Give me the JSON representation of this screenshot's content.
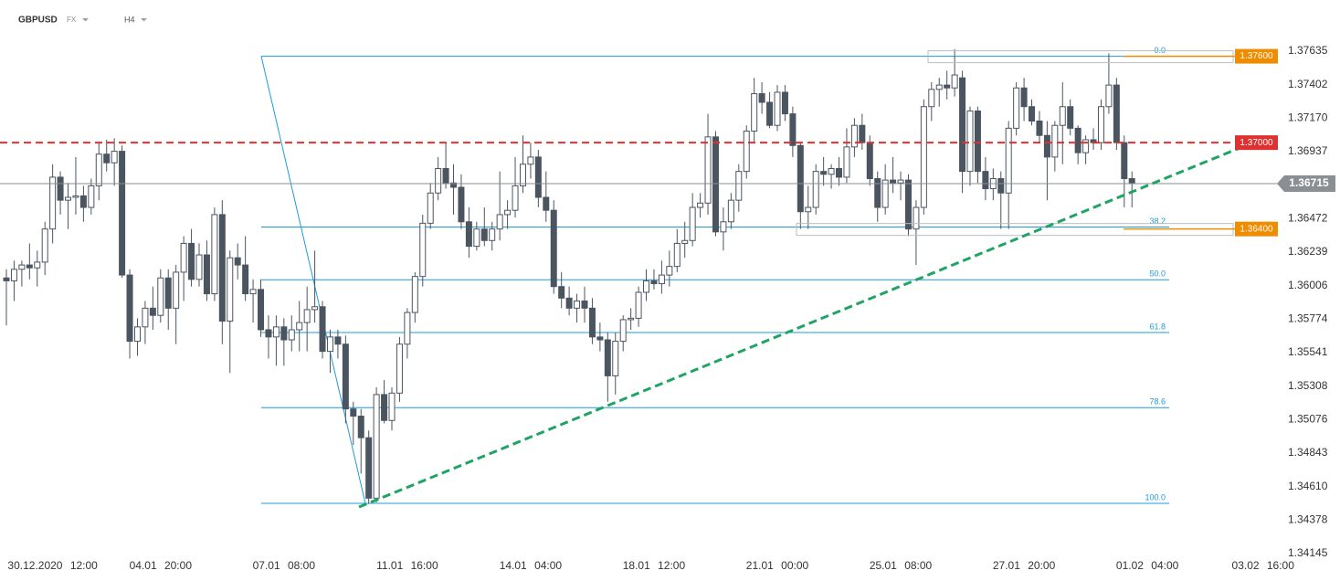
{
  "chart_data": {
    "type": "candlestick",
    "symbol": "GBPUSD",
    "market": "FX",
    "timeframe": "H4",
    "up_color": "#ffffff",
    "down_color": "#4b5560",
    "grid": false,
    "ylim": [
      1.34145,
      1.37737
    ],
    "yticks": [
      1.37635,
      1.37402,
      {
        "value": 1.3717,
        "label": "1.37170"
      },
      1.36937,
      1.36472,
      1.36239,
      1.36006,
      1.35774,
      1.35541,
      1.35308,
      1.35076,
      1.34843,
      {
        "value": 1.3461,
        "label": "1.34610"
      },
      1.34378,
      1.34145
    ],
    "categories": [
      null,
      null,
      null,
      null,
      null,
      null,
      "30.12.2020 12:00",
      null,
      null,
      null,
      null,
      null,
      null,
      null,
      null,
      null,
      null,
      null,
      null,
      null,
      "04.01 20:00",
      null,
      null,
      null,
      null,
      null,
      null,
      null,
      null,
      null,
      null,
      null,
      null,
      null,
      null,
      null,
      "07.01 08:00",
      null,
      null,
      null,
      null,
      null,
      null,
      null,
      null,
      null,
      null,
      null,
      null,
      null,
      null,
      null,
      "11.01 16:00",
      null,
      null,
      null,
      null,
      null,
      null,
      null,
      null,
      null,
      null,
      null,
      null,
      null,
      null,
      null,
      "14.01 04:00",
      null,
      null,
      null,
      null,
      null,
      null,
      null,
      null,
      null,
      null,
      null,
      null,
      null,
      null,
      null,
      "18.01 12:00",
      null,
      null,
      null,
      null,
      null,
      null,
      null,
      null,
      null,
      null,
      null,
      null,
      null,
      null,
      null,
      "21.01 00:00",
      null,
      null,
      null,
      null,
      null,
      null,
      null,
      null,
      null,
      null,
      null,
      null,
      null,
      null,
      null,
      "25.01 08:00",
      null,
      null,
      null,
      null,
      null,
      null,
      null,
      null,
      null,
      null,
      null,
      null,
      null,
      null,
      null,
      "27.01 20:00",
      null,
      null,
      null,
      null,
      null,
      null,
      null,
      null,
      null,
      null,
      null,
      null,
      null,
      null,
      null,
      "01.02 04:00",
      null,
      null,
      null,
      null,
      null,
      null,
      null,
      null,
      null,
      null,
      null,
      null,
      null,
      null,
      "03.02 16:00"
    ],
    "open": [
      1.3606,
      1.3604,
      1.3612,
      1.3615,
      1.3613,
      1.3617,
      1.364,
      1.3676,
      1.366,
      1.3662,
      1.3663,
      1.3655,
      1.367,
      1.3692,
      1.3686,
      1.3694,
      1.3608,
      1.3562,
      1.3572,
      1.3585,
      1.358,
      1.3606,
      1.3585,
      1.361,
      1.363,
      1.3605,
      1.3622,
      1.3595,
      1.365,
      1.3576,
      1.362,
      1.3615,
      1.3595,
      1.3598,
      1.357,
      1.3565,
      1.3572,
      1.3563,
      1.357,
      1.3575,
      1.3584,
      1.3586,
      1.3555,
      1.3565,
      1.356,
      1.3515,
      1.351,
      1.3495,
      1.3453,
      1.3525,
      1.3507,
      1.3526,
      1.356,
      1.3582,
      1.3607,
      1.3644,
      1.3665,
      1.3682,
      1.3672,
      1.3669,
      1.3645,
      1.3628,
      1.364,
      1.3632,
      1.364,
      1.365,
      1.3653,
      1.367,
      1.3685,
      1.369,
      1.3662,
      1.3653,
      1.36,
      1.3592,
      1.3585,
      1.359,
      1.3585,
      1.3565,
      1.3563,
      1.3538,
      1.3562,
      1.3577,
      1.3578,
      1.3596,
      1.3604,
      1.3602,
      1.3608,
      1.3614,
      1.363,
      1.3632,
      1.3655,
      1.3658,
      1.3704,
      1.3638,
      1.3645,
      1.366,
      1.368,
      1.3708,
      1.3734,
      1.3728,
      1.3712,
      1.3735,
      1.372,
      1.3698,
      1.3652,
      1.3655,
      1.368,
      1.3678,
      1.3682,
      1.3676,
      1.3697,
      1.3712,
      1.37,
      1.3675,
      1.3655,
      1.3674,
      1.3672,
      1.3674,
      1.364,
      1.3655,
      1.3725,
      1.3737,
      1.374,
      1.3738,
      1.3745,
      1.368,
      1.3722,
      1.368,
      1.3668,
      1.3675,
      1.3665,
      1.371,
      1.3738,
      1.3725,
      1.3715,
      1.3705,
      1.369,
      1.3712,
      1.3725,
      1.371,
      1.3693,
      1.3702,
      1.37,
      1.3725,
      1.374,
      1.37,
      1.3675,
      null,
      null,
      null,
      null,
      null,
      null,
      null,
      null,
      null,
      null,
      null,
      null,
      null,
      null,
      null,
      null,
      null
    ],
    "high": [
      1.3612,
      1.3618,
      1.3618,
      1.363,
      1.3625,
      1.3645,
      1.3685,
      1.368,
      1.3672,
      1.369,
      1.367,
      1.3675,
      1.37,
      1.3702,
      1.3703,
      1.3698,
      1.3612,
      1.3578,
      1.359,
      1.36,
      1.3612,
      1.3612,
      1.3615,
      1.3635,
      1.364,
      1.363,
      1.3632,
      1.3655,
      1.366,
      1.3625,
      1.363,
      1.3635,
      1.3605,
      1.3605,
      1.358,
      1.358,
      1.3578,
      1.358,
      1.359,
      1.36,
      1.3625,
      1.359,
      1.357,
      1.357,
      1.3566,
      1.352,
      1.3515,
      1.35,
      1.353,
      1.3535,
      1.353,
      1.3565,
      1.3585,
      1.361,
      1.365,
      1.3672,
      1.369,
      1.37,
      1.3685,
      1.3678,
      1.3655,
      1.3645,
      1.3655,
      1.3645,
      1.368,
      1.366,
      1.369,
      1.3705,
      1.37,
      1.3695,
      1.368,
      1.366,
      1.361,
      1.36,
      1.3595,
      1.36,
      1.3592,
      1.3575,
      1.3568,
      1.3568,
      1.358,
      1.3585,
      1.36,
      1.3612,
      1.3612,
      1.3618,
      1.3625,
      1.364,
      1.3645,
      1.3665,
      1.3665,
      1.372,
      1.3708,
      1.3655,
      1.3665,
      1.3685,
      1.3712,
      1.3745,
      1.3742,
      1.3735,
      1.374,
      1.374,
      1.3725,
      1.37,
      1.367,
      1.3685,
      1.369,
      1.3685,
      1.369,
      1.371,
      1.3717,
      1.372,
      1.3705,
      1.368,
      1.3685,
      1.369,
      1.368,
      1.3678,
      1.366,
      1.373,
      1.3742,
      1.3745,
      1.375,
      1.3765,
      1.375,
      1.3725,
      1.3725,
      1.369,
      1.3682,
      1.368,
      1.3715,
      1.3742,
      1.3745,
      1.373,
      1.3722,
      1.3715,
      1.3715,
      1.3742,
      1.373,
      1.3712,
      1.3705,
      1.371,
      1.373,
      1.3762,
      1.3745,
      1.3705,
      1.368,
      null,
      null,
      null,
      null,
      null,
      null,
      null,
      null,
      null,
      null,
      null,
      null,
      null,
      null,
      null,
      null,
      null
    ],
    "low": [
      1.3573,
      1.359,
      1.36,
      1.3605,
      1.36,
      1.3608,
      1.363,
      1.365,
      1.364,
      1.365,
      1.3645,
      1.365,
      1.366,
      1.368,
      1.367,
      1.3606,
      1.355,
      1.3552,
      1.356,
      1.357,
      1.3575,
      1.357,
      1.356,
      1.359,
      1.36,
      1.36,
      1.359,
      1.359,
      1.356,
      1.354,
      1.3605,
      1.359,
      1.3575,
      1.3565,
      1.355,
      1.3545,
      1.3545,
      1.3555,
      1.3555,
      1.3555,
      1.3575,
      1.355,
      1.354,
      1.355,
      1.3505,
      1.349,
      1.347,
      1.3449,
      1.345,
      1.3505,
      1.35,
      1.352,
      1.355,
      1.3575,
      1.36,
      1.364,
      1.366,
      1.3668,
      1.365,
      1.364,
      1.362,
      1.3625,
      1.3628,
      1.3625,
      1.3632,
      1.364,
      1.3648,
      1.3665,
      1.3675,
      1.3655,
      1.3645,
      1.3595,
      1.3585,
      1.358,
      1.3575,
      1.3575,
      1.356,
      1.3555,
      1.352,
      1.3525,
      1.3555,
      1.357,
      1.3572,
      1.359,
      1.3598,
      1.3595,
      1.36,
      1.361,
      1.362,
      1.3628,
      1.3648,
      1.365,
      1.3635,
      1.3625,
      1.364,
      1.3652,
      1.3675,
      1.37,
      1.372,
      1.371,
      1.3708,
      1.3715,
      1.369,
      1.364,
      1.364,
      1.365,
      1.367,
      1.3668,
      1.367,
      1.3672,
      1.369,
      1.3695,
      1.367,
      1.3645,
      1.365,
      1.3665,
      1.366,
      1.3635,
      1.3615,
      1.365,
      1.3715,
      1.3725,
      1.373,
      1.3732,
      1.3665,
      1.367,
      1.3672,
      1.366,
      1.366,
      1.364,
      1.364,
      1.3705,
      1.3715,
      1.3712,
      1.37,
      1.366,
      1.368,
      1.3685,
      1.3705,
      1.3685,
      1.3685,
      1.3695,
      1.3695,
      1.372,
      1.3695,
      1.3655,
      1.3655,
      null,
      null,
      null,
      null,
      null,
      null,
      null,
      null,
      null,
      null,
      null,
      null,
      null,
      null,
      null,
      null,
      null
    ],
    "close": [
      1.3604,
      1.3612,
      1.3615,
      1.3613,
      1.3617,
      1.364,
      1.3676,
      1.366,
      1.3662,
      1.3663,
      1.3655,
      1.367,
      1.3692,
      1.3686,
      1.3694,
      1.3608,
      1.3562,
      1.3572,
      1.3585,
      1.358,
      1.3606,
      1.3585,
      1.361,
      1.363,
      1.3605,
      1.3622,
      1.3595,
      1.365,
      1.3576,
      1.362,
      1.3615,
      1.3595,
      1.3598,
      1.357,
      1.3565,
      1.3572,
      1.3563,
      1.357,
      1.3575,
      1.3584,
      1.3586,
      1.3555,
      1.3565,
      1.356,
      1.3515,
      1.351,
      1.3495,
      1.3453,
      1.3525,
      1.3507,
      1.3526,
      1.356,
      1.3582,
      1.3607,
      1.3644,
      1.3665,
      1.3682,
      1.3672,
      1.3669,
      1.3645,
      1.3628,
      1.364,
      1.3632,
      1.364,
      1.365,
      1.3653,
      1.367,
      1.3685,
      1.369,
      1.3662,
      1.3653,
      1.36,
      1.3592,
      1.3585,
      1.359,
      1.3585,
      1.3565,
      1.3563,
      1.3538,
      1.3562,
      1.3577,
      1.3578,
      1.3596,
      1.3604,
      1.3602,
      1.3608,
      1.3614,
      1.363,
      1.3632,
      1.3655,
      1.3658,
      1.3704,
      1.3638,
      1.3645,
      1.366,
      1.368,
      1.3708,
      1.3734,
      1.3728,
      1.3712,
      1.3735,
      1.372,
      1.3698,
      1.3652,
      1.3655,
      1.368,
      1.3678,
      1.3682,
      1.3676,
      1.3697,
      1.3712,
      1.37,
      1.3675,
      1.3655,
      1.3674,
      1.3672,
      1.3674,
      1.364,
      1.3655,
      1.3725,
      1.3737,
      1.374,
      1.3738,
      1.3747,
      1.368,
      1.3722,
      1.368,
      1.3668,
      1.3675,
      1.3665,
      1.371,
      1.3738,
      1.3725,
      1.3715,
      1.3705,
      1.369,
      1.3712,
      1.3725,
      1.371,
      1.3693,
      1.3702,
      1.37,
      1.3725,
      1.374,
      1.37,
      1.3675,
      1.36715,
      null,
      null,
      null,
      null,
      null,
      null,
      null,
      null,
      null,
      null,
      null,
      null,
      null,
      null,
      null,
      null,
      null
    ],
    "levels": [
      {
        "value": 1.376,
        "label": "1.37600",
        "color": "#f08c00",
        "line": "segment"
      },
      {
        "value": 1.37,
        "label": "1.37000",
        "color": "#e03131",
        "line": "dashed"
      },
      {
        "value": 1.364,
        "label": "1.36400",
        "color": "#f08c00",
        "line": "segment"
      }
    ],
    "last_price": 1.36715,
    "last_price_color": "#8a8f94",
    "fibonacci": {
      "high": 1.376,
      "low": 1.34494,
      "color": "#1e9bd7",
      "levels": [
        {
          "value": 0,
          "label": "0.0"
        },
        38.2,
        {
          "value": 50,
          "label": "50.0"
        },
        61.8,
        78.6,
        {
          "value": 100,
          "label": "100.0"
        }
      ]
    }
  }
}
